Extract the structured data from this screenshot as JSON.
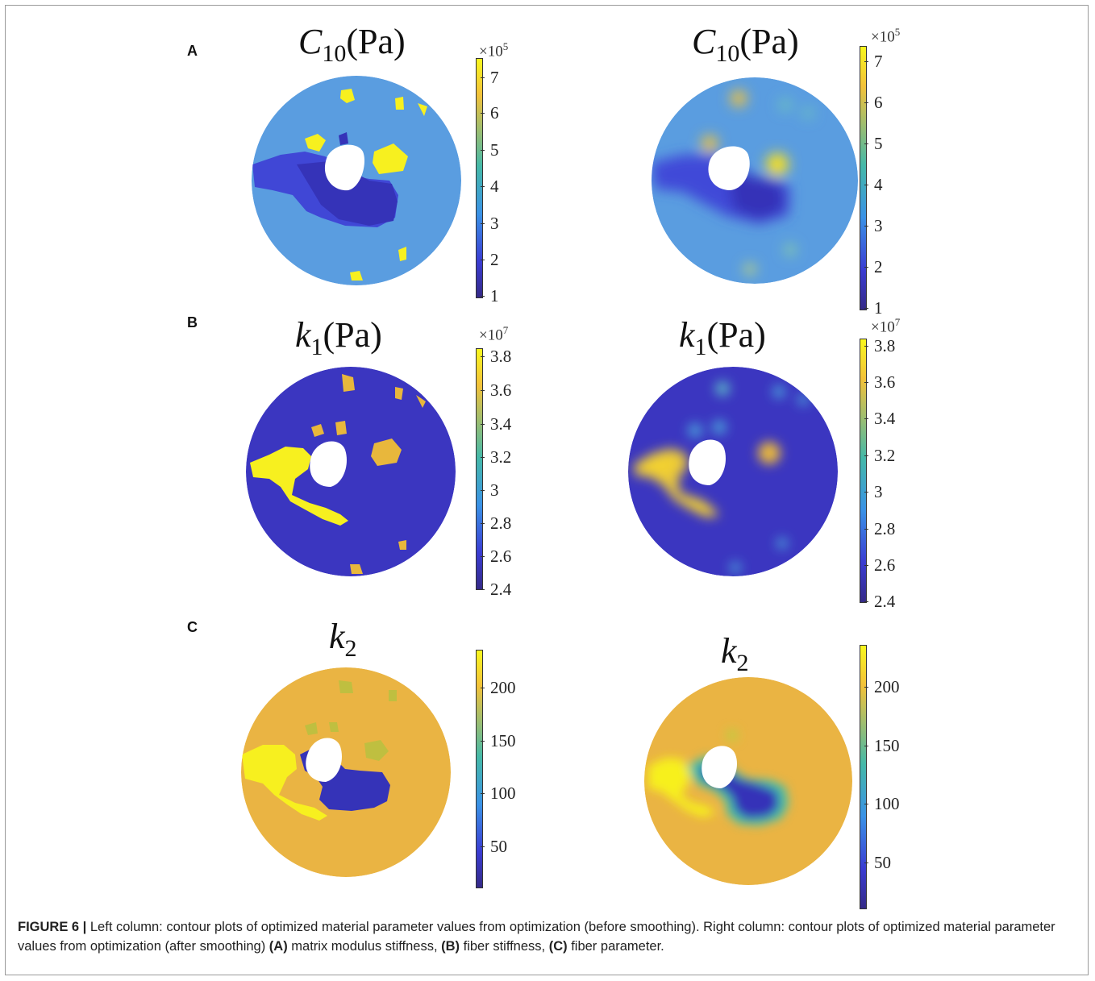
{
  "figure": {
    "label": "FIGURE 6 |",
    "caption_text_1": " Left column: contour plots of optimized material parameter values from optimization (before smoothing). Right column: contour plots of optimized material parameter values from optimization (after smoothing) ",
    "caption_a": "(A)",
    "caption_a_text": " matrix modulus stiffness, ",
    "caption_b": "(B)",
    "caption_b_text": " fiber stiffness, ",
    "caption_c": "(C)",
    "caption_c_text": " fiber parameter."
  },
  "panels": {
    "A": {
      "letter": "A",
      "title_sym": "C",
      "title_sub": "10",
      "title_par": "(Pa)",
      "multiplier": "×10",
      "multiplier_exp": "5",
      "ticks": [
        "7",
        "6",
        "5",
        "4",
        "3",
        "2",
        "1"
      ]
    },
    "B": {
      "letter": "B",
      "title_sym": "k",
      "title_sub": "1",
      "title_par": "(Pa)",
      "multiplier": "×10",
      "multiplier_exp": "7",
      "ticks": [
        "3.8",
        "3.6",
        "3.4",
        "3.2",
        "3",
        "2.8",
        "2.6",
        "2.4"
      ]
    },
    "C": {
      "letter": "C",
      "title_sym": "k",
      "title_sub": "2",
      "ticks": [
        "200",
        "150",
        "100",
        "50"
      ]
    }
  },
  "colors": {
    "cyan_blue": "#5a9de0",
    "deep_blue": "#3533b8",
    "mid_blue": "#3f48d8",
    "yellow": "#f7f01f",
    "gold": "#e8b73c",
    "orange_gold": "#eab443"
  }
}
